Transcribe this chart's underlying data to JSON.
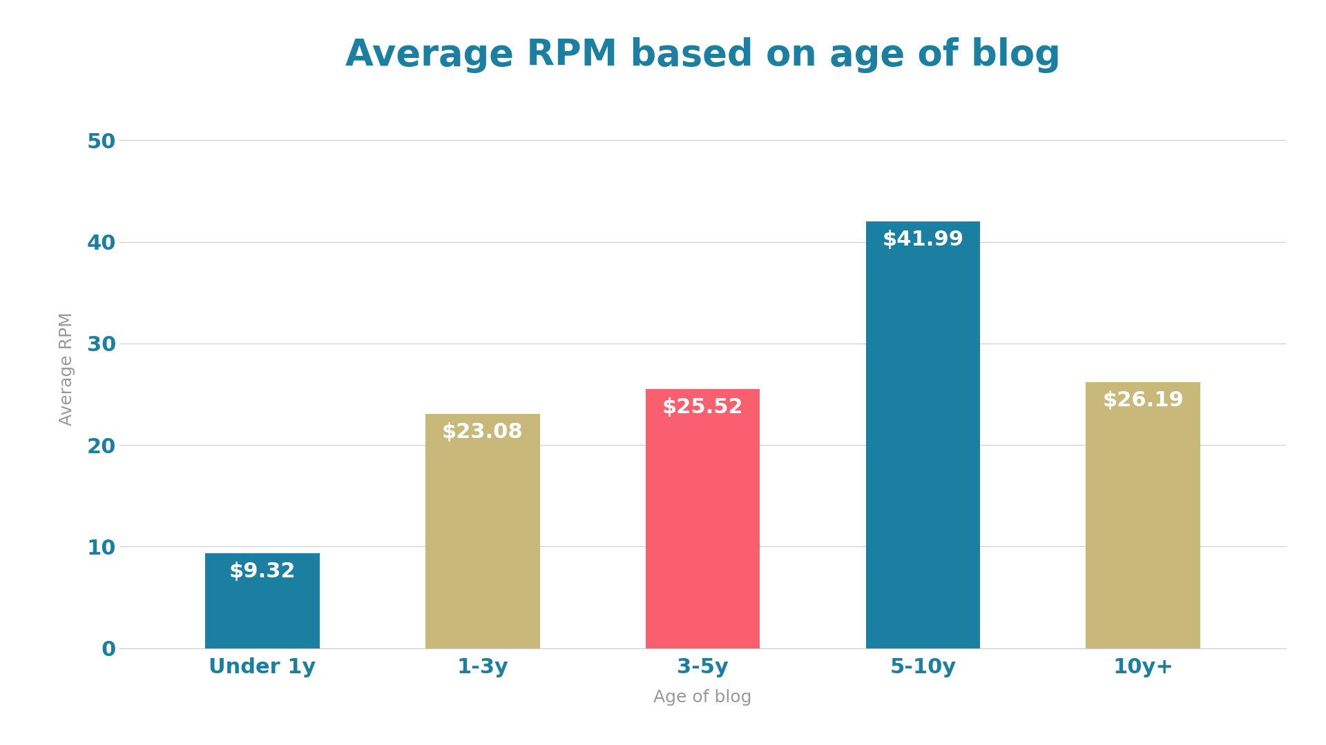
{
  "categories": [
    "Under 1y",
    "1-3y",
    "3-5y",
    "5-10y",
    "10y+"
  ],
  "values": [
    9.32,
    23.08,
    25.52,
    41.99,
    26.19
  ],
  "labels": [
    "$9.32",
    "$23.08",
    "$25.52",
    "$41.99",
    "$26.19"
  ],
  "bar_colors": [
    "#1a7fa0",
    "#c8b87a",
    "#f95f6e",
    "#1a7fa0",
    "#c8b87a"
  ],
  "title": "Average RPM based on age of blog",
  "xlabel": "Age of blog",
  "ylabel": "Average RPM",
  "ylim": [
    0,
    55
  ],
  "yticks": [
    0,
    10,
    20,
    30,
    40,
    50
  ],
  "title_color": "#1a7fa0",
  "xlabel_color": "#999999",
  "ylabel_color": "#999999",
  "xtick_color": "#1a7fa0",
  "ytick_color": "#1a7fa0",
  "label_color": "#ffffff",
  "background_color": "#ffffff",
  "grid_color": "#cccccc",
  "title_fontsize": 38,
  "axis_label_fontsize": 18,
  "tick_fontsize": 22,
  "bar_label_fontsize": 22,
  "bar_width": 0.52
}
